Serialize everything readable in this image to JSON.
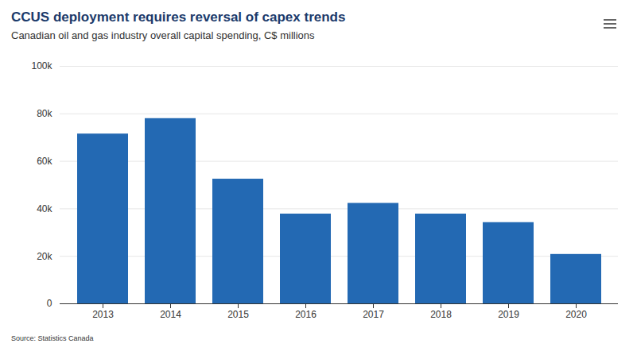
{
  "chart_data": {
    "type": "bar",
    "title": "CCUS deployment requires reversal of capex trends",
    "subtitle": "Canadian oil and gas industry overall capital spending, C$ millions",
    "caption": "Source: Statistics Canada",
    "categories": [
      "2013",
      "2014",
      "2015",
      "2016",
      "2017",
      "2018",
      "2019",
      "2020"
    ],
    "values": [
      71500,
      78000,
      52500,
      37800,
      42300,
      37800,
      34200,
      20800
    ],
    "color": "#2369b3",
    "ylim": [
      0,
      100000
    ],
    "yticks": [
      0,
      {
        "value": 20000,
        "label": "20k"
      },
      {
        "value": 40000,
        "label": "40k"
      },
      {
        "value": 60000,
        "label": "60k"
      },
      {
        "value": 80000,
        "label": "80k"
      },
      {
        "value": 100000,
        "label": "100k"
      }
    ],
    "grid": true
  }
}
